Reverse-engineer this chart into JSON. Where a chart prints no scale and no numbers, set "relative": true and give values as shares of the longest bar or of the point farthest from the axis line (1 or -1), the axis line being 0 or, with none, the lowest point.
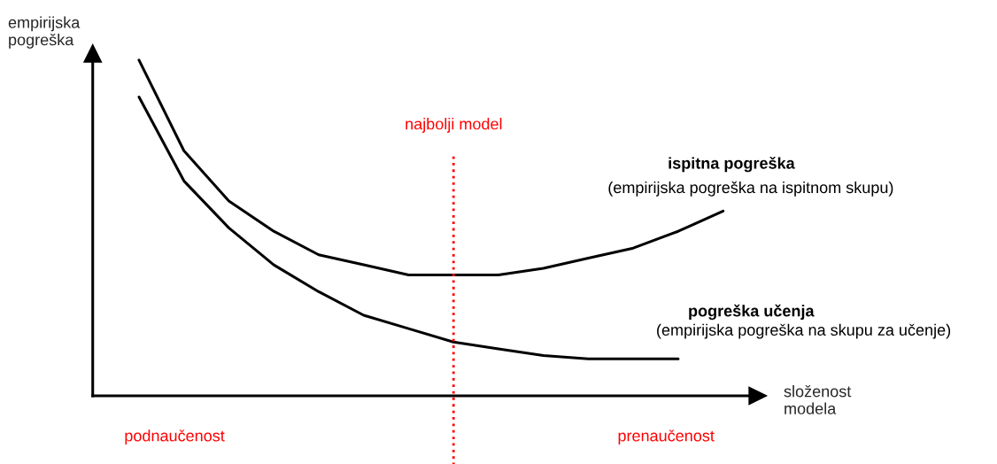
{
  "chart_data": {
    "type": "line",
    "relative": true,
    "xlabel": "složenost\nmodela",
    "ylabel": "empirijska\npogreška",
    "categories": [
      null,
      null,
      null,
      null,
      null,
      null,
      null,
      null,
      null,
      null,
      null,
      null,
      null,
      null
    ],
    "series": [
      {
        "name": "ispitna pogreška",
        "color": "#000000",
        "values": [
          1.0,
          0.73,
          0.58,
          0.49,
          0.42,
          0.39,
          0.36,
          0.36,
          0.36,
          0.38,
          0.41,
          0.44,
          0.49,
          0.55
        ]
      },
      {
        "name": "pogreška učenja",
        "color": "#000000",
        "values": [
          0.89,
          0.64,
          0.5,
          0.39,
          0.31,
          0.24,
          0.2,
          0.16,
          0.14,
          0.12,
          0.11,
          0.11,
          0.11,
          null
        ]
      }
    ],
    "annotations": [
      "(empirijska pogreška na ispitnom skupu)",
      "(empirijska pogreška na skupu za učenje)",
      "podnaučenost",
      "prenaučenost",
      "najbolji model"
    ],
    "marker": "none",
    "line_style": "solid",
    "legend": false
  }
}
